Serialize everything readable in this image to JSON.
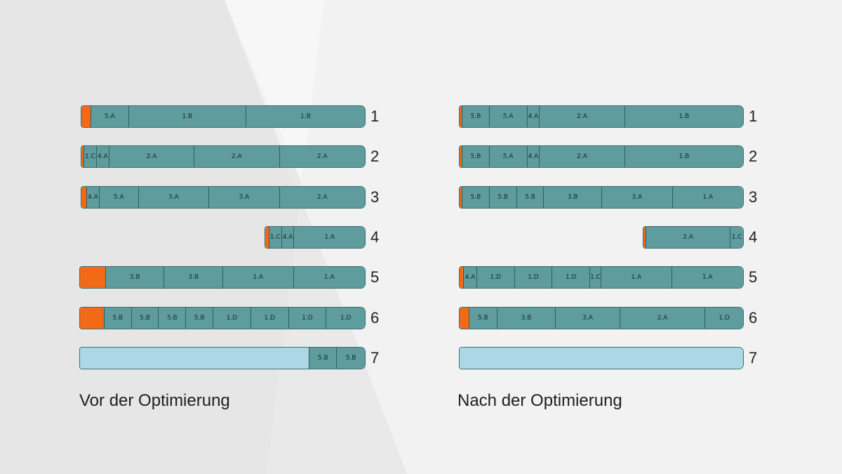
{
  "colors": {
    "rest": "#f26a16",
    "piece": "#5e9c9d",
    "empty": "#acd7e4"
  },
  "panels": [
    {
      "caption": "Vor der Optimierung",
      "bars": [
        {
          "number": "1",
          "segments": [
            {
              "t": "rest",
              "w": 14
            },
            {
              "t": "piece",
              "label": "5.A",
              "w": 54
            },
            {
              "t": "piece",
              "label": "1.B",
              "w": 168
            },
            {
              "t": "piece",
              "label": "1.B",
              "w": 170
            }
          ]
        },
        {
          "number": "2",
          "segments": [
            {
              "t": "rest",
              "w": 4
            },
            {
              "t": "piece",
              "label": "1.C",
              "w": 18
            },
            {
              "t": "piece",
              "label": "4.A",
              "w": 18
            },
            {
              "t": "piece",
              "label": "2.A",
              "w": 122
            },
            {
              "t": "piece",
              "label": "2.A",
              "w": 122
            },
            {
              "t": "piece",
              "label": "2.A",
              "w": 122
            }
          ]
        },
        {
          "number": "3",
          "segments": [
            {
              "t": "rest",
              "w": 8
            },
            {
              "t": "piece",
              "label": "4.A",
              "w": 18
            },
            {
              "t": "piece",
              "label": "5.A",
              "w": 56
            },
            {
              "t": "piece",
              "label": "3.A",
              "w": 101
            },
            {
              "t": "piece",
              "label": "3.A",
              "w": 101
            },
            {
              "t": "piece",
              "label": "2.A",
              "w": 122
            }
          ]
        },
        {
          "number": "4",
          "segments": [
            {
              "t": "rest",
              "w": 6
            },
            {
              "t": "piece",
              "label": "1.C",
              "w": 18
            },
            {
              "t": "piece",
              "label": "4.A",
              "w": 18
            },
            {
              "t": "piece",
              "label": "1.A",
              "w": 102
            }
          ]
        },
        {
          "number": "5",
          "segments": [
            {
              "t": "rest",
              "w": 37
            },
            {
              "t": "piece",
              "label": "3.B",
              "w": 84
            },
            {
              "t": "piece",
              "label": "3.B",
              "w": 84
            },
            {
              "t": "piece",
              "label": "1.A",
              "w": 101
            },
            {
              "t": "piece",
              "label": "1.A",
              "w": 102
            }
          ]
        },
        {
          "number": "6",
          "segments": [
            {
              "t": "rest",
              "w": 35
            },
            {
              "t": "piece",
              "label": "5.B",
              "w": 39
            },
            {
              "t": "piece",
              "label": "5.B",
              "w": 39
            },
            {
              "t": "piece",
              "label": "5.B",
              "w": 39
            },
            {
              "t": "piece",
              "label": "5.B",
              "w": 39
            },
            {
              "t": "piece",
              "label": "1.D",
              "w": 54
            },
            {
              "t": "piece",
              "label": "1.D",
              "w": 54
            },
            {
              "t": "piece",
              "label": "1.D",
              "w": 54
            },
            {
              "t": "piece",
              "label": "1.D",
              "w": 55
            }
          ]
        },
        {
          "number": "7",
          "segments": [
            {
              "t": "empty",
              "w": 329
            },
            {
              "t": "piece",
              "label": "5.B",
              "w": 39
            },
            {
              "t": "piece",
              "label": "5.B",
              "w": 40
            }
          ]
        }
      ]
    },
    {
      "caption": "Nach der Optimierung",
      "bars": [
        {
          "number": "1",
          "segments": [
            {
              "t": "rest",
              "w": 4
            },
            {
              "t": "piece",
              "label": "5.B",
              "w": 39
            },
            {
              "t": "piece",
              "label": "5.A",
              "w": 54
            },
            {
              "t": "piece",
              "label": "4.A",
              "w": 18
            },
            {
              "t": "piece",
              "label": "2.A",
              "w": 122
            },
            {
              "t": "piece",
              "label": "1.B",
              "w": 169
            }
          ]
        },
        {
          "number": "2",
          "segments": [
            {
              "t": "rest",
              "w": 4
            },
            {
              "t": "piece",
              "label": "5.B",
              "w": 39
            },
            {
              "t": "piece",
              "label": "5.A",
              "w": 54
            },
            {
              "t": "piece",
              "label": "4.A",
              "w": 18
            },
            {
              "t": "piece",
              "label": "2.A",
              "w": 122
            },
            {
              "t": "piece",
              "label": "1.B",
              "w": 169
            }
          ]
        },
        {
          "number": "3",
          "segments": [
            {
              "t": "rest",
              "w": 4
            },
            {
              "t": "piece",
              "label": "5.B",
              "w": 39
            },
            {
              "t": "piece",
              "label": "5.B",
              "w": 39
            },
            {
              "t": "piece",
              "label": "5.B",
              "w": 39
            },
            {
              "t": "piece",
              "label": "3.B",
              "w": 83
            },
            {
              "t": "piece",
              "label": "3.A",
              "w": 101
            },
            {
              "t": "piece",
              "label": "1.A",
              "w": 101
            }
          ]
        },
        {
          "number": "4",
          "segments": [
            {
              "t": "rest",
              "w": 4
            },
            {
              "t": "piece",
              "label": "2.A",
              "w": 122
            },
            {
              "t": "piece",
              "label": "1.C",
              "w": 18
            }
          ]
        },
        {
          "number": "5",
          "segments": [
            {
              "t": "rest",
              "w": 6
            },
            {
              "t": "piece",
              "label": "4.A",
              "w": 19
            },
            {
              "t": "piece",
              "label": "1.D",
              "w": 54
            },
            {
              "t": "piece",
              "label": "1.D",
              "w": 54
            },
            {
              "t": "piece",
              "label": "1.D",
              "w": 54
            },
            {
              "t": "piece",
              "label": "1.C",
              "w": 16
            },
            {
              "t": "piece",
              "label": "1.A",
              "w": 101
            },
            {
              "t": "piece",
              "label": "1.A",
              "w": 102
            }
          ]
        },
        {
          "number": "6",
          "segments": [
            {
              "t": "rest",
              "w": 14
            },
            {
              "t": "piece",
              "label": "5.B",
              "w": 40
            },
            {
              "t": "piece",
              "label": "3.B",
              "w": 84
            },
            {
              "t": "piece",
              "label": "3.A",
              "w": 92
            },
            {
              "t": "piece",
              "label": "2.A",
              "w": 122
            },
            {
              "t": "piece",
              "label": "1.D",
              "w": 54
            }
          ]
        },
        {
          "number": "7",
          "segments": [
            {
              "t": "empty",
              "w": 406
            }
          ]
        }
      ]
    }
  ]
}
